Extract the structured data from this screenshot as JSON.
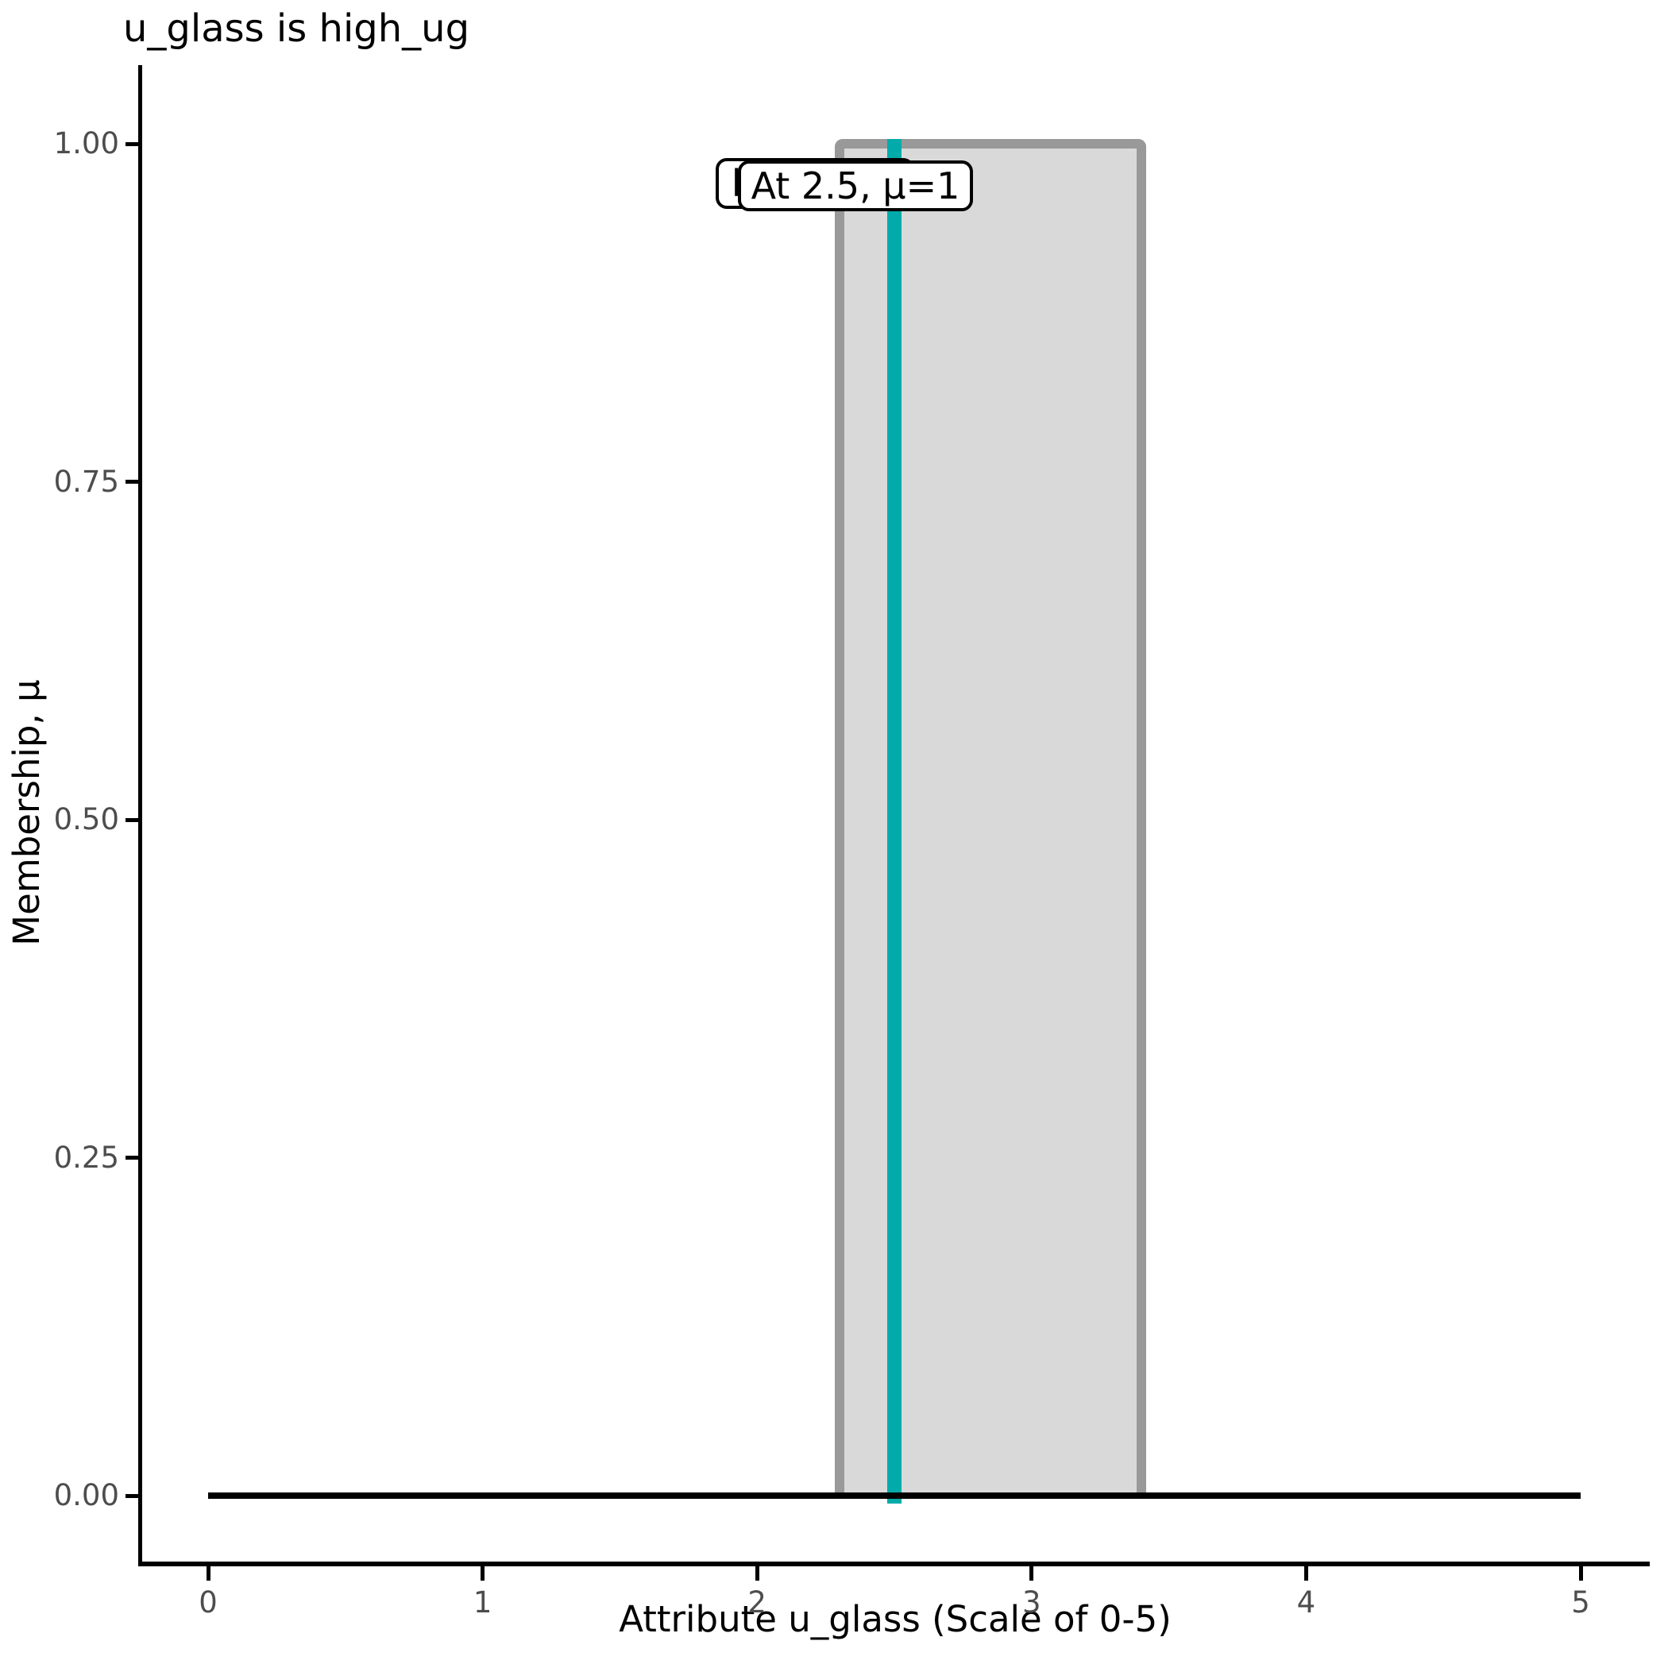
{
  "chart_data": {
    "type": "area",
    "title": "u_glass is high_ug",
    "xlabel": "Attribute u_glass (Scale of 0-5)",
    "ylabel": "Membership, μ",
    "xlim": [
      0,
      5
    ],
    "ylim": [
      0,
      1
    ],
    "x_ticks": [
      "0",
      "1",
      "2",
      "3",
      "4",
      "5"
    ],
    "y_ticks": [
      "0.00",
      "0.25",
      "0.50",
      "0.75",
      "1.00"
    ],
    "grid": false,
    "legend": "none",
    "membership_function": {
      "name": "high_ug",
      "shape": "rectangular",
      "support": [
        2.3,
        3.4
      ],
      "height": 1,
      "baseline_mu": 0
    },
    "evaluation": {
      "x": 2.5,
      "mu": 1,
      "label": "At 2.5, μ=1"
    },
    "annotations": [
      {
        "text": "high_ug",
        "note": "partially hidden behind front label"
      },
      {
        "text": "At 2.5, μ=1"
      }
    ],
    "colors": {
      "rect_fill": "#D9D9D9",
      "rect_border": "#999999",
      "eval_line": "#00ABA9",
      "baseline": "#000000",
      "tick_label": "#4D4D4D",
      "axis": "#000000"
    }
  }
}
